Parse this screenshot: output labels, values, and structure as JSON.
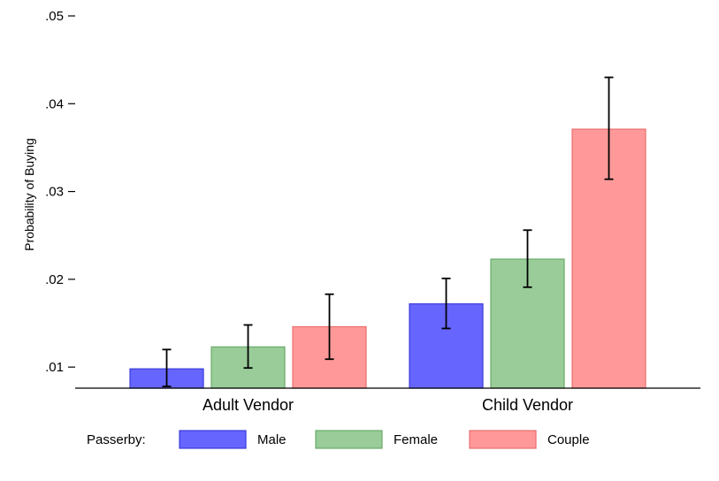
{
  "chart_data": {
    "type": "bar",
    "title": "",
    "xlabel": "",
    "ylabel": "Probability of Buying",
    "ylim": [
      0.0076,
      0.05
    ],
    "yticks": [
      0.01,
      0.02,
      0.03,
      0.04,
      0.05
    ],
    "ytick_labels": [
      ".01",
      ".02",
      ".03",
      ".04",
      ".05"
    ],
    "categories": [
      "Adult Vendor",
      "Child Vendor"
    ],
    "legend_title": "Passerby:",
    "legend_position": "bottom",
    "series": [
      {
        "name": "Male",
        "color": "#6666ff",
        "stroke": "#3b3bdc",
        "values": [
          0.0098,
          0.0172
        ],
        "ci_low": [
          0.0078,
          0.0144
        ],
        "ci_high": [
          0.012,
          0.0201
        ]
      },
      {
        "name": "Female",
        "color": "#99cc99",
        "stroke": "#6aaa6a",
        "values": [
          0.0123,
          0.0223
        ],
        "ci_low": [
          0.0099,
          0.0191
        ],
        "ci_high": [
          0.0148,
          0.0256
        ]
      },
      {
        "name": "Couple",
        "color": "#ff9999",
        "stroke": "#e86e6e",
        "values": [
          0.0146,
          0.0371
        ],
        "ci_low": [
          0.0109,
          0.0314
        ],
        "ci_high": [
          0.0183,
          0.043
        ]
      }
    ]
  }
}
